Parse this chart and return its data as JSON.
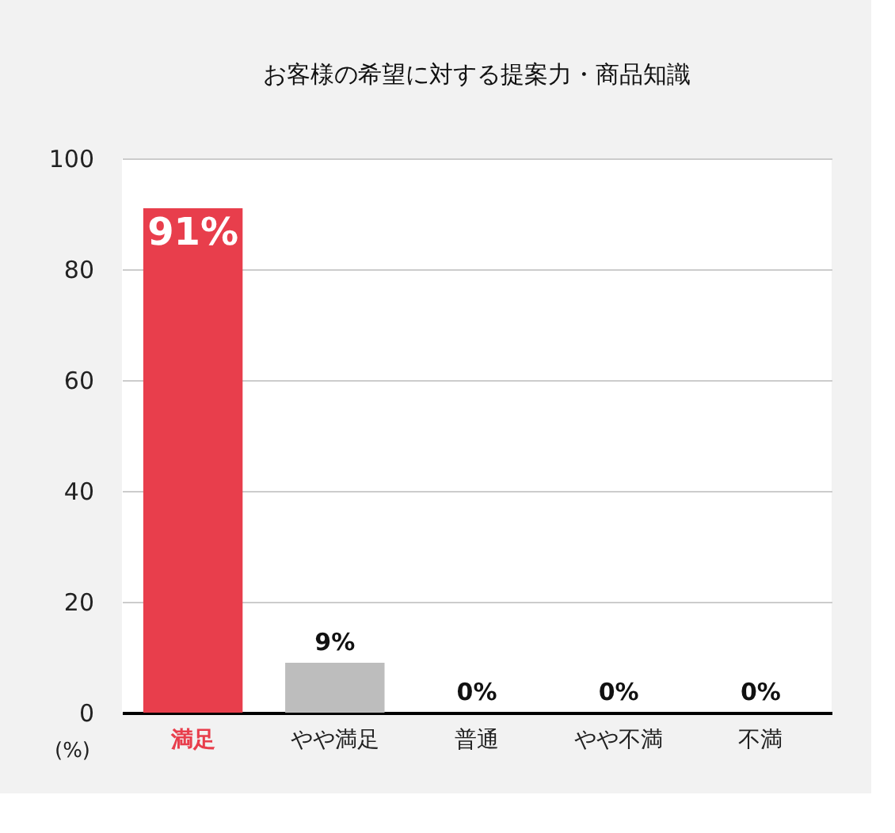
{
  "chart_data": {
    "type": "bar",
    "title": "お客様の希望に対する提案力・商品知識",
    "ylabel": "(%)",
    "categories": [
      "満足",
      "やや満足",
      "普通",
      "やや不満",
      "不満"
    ],
    "values": [
      91,
      9,
      0,
      0,
      0
    ],
    "colors": [
      "#e83e4c",
      "#bdbdbd",
      "#bdbdbd",
      "#bdbdbd",
      "#bdbdbd"
    ],
    "value_labels": [
      "91%",
      "9%",
      "0%",
      "0%",
      "0%"
    ],
    "ylim": [
      0,
      100
    ],
    "yticks": [
      0,
      20,
      40,
      60,
      80,
      100
    ],
    "grid": "y"
  }
}
